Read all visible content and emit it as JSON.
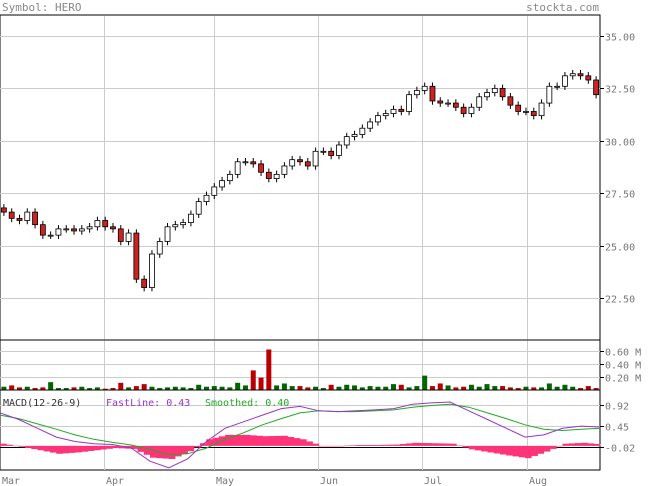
{
  "header": {
    "symbol_text": "Symbol: HERO",
    "brand": "stockta.com"
  },
  "macd": {
    "title": "MACD(12-26-9)",
    "fast_label": "FastLine: 0.43",
    "smooth_label": "Smoothed: 0.40"
  },
  "colors": {
    "background": "#ffffff",
    "grid": "#cccccc",
    "frame": "#000000",
    "up_candle": "#ffffff",
    "down_candle": "#cc2222",
    "volume_up": "#006600",
    "volume_down": "#bb0000",
    "fast_line": "#9933cc",
    "smoothed_line": "#22aa22",
    "histogram": "#ff3377"
  },
  "chart_data": [
    {
      "type": "candlestick",
      "title": "Symbol: HERO",
      "x_labels": [
        "Mar",
        "Apr",
        "May",
        "Jun",
        "Jul",
        "Aug"
      ],
      "y_ticks": [
        35.0,
        32.5,
        30.0,
        27.5,
        25.0,
        22.5
      ],
      "y_tick_labels": [
        "35.00",
        "32.50",
        "30.00",
        "27.50",
        "25.00",
        "22.50"
      ],
      "ylim": [
        20.5,
        36.0
      ],
      "grid": true,
      "close": [
        26.6,
        26.3,
        26.2,
        26.6,
        26.0,
        25.5,
        25.5,
        25.8,
        25.8,
        25.7,
        25.8,
        25.9,
        26.2,
        25.9,
        25.8,
        25.2,
        25.6,
        23.4,
        23.0,
        24.6,
        25.2,
        25.9,
        26.0,
        26.1,
        26.5,
        27.1,
        27.4,
        27.8,
        28.1,
        28.4,
        29.0,
        29.0,
        28.9,
        28.5,
        28.2,
        28.4,
        28.8,
        29.1,
        29.0,
        28.8,
        29.5,
        29.5,
        29.3,
        29.8,
        30.2,
        30.3,
        30.6,
        30.9,
        31.2,
        31.3,
        31.5,
        31.4,
        32.2,
        32.4,
        32.6,
        31.9,
        31.8,
        31.8,
        31.6,
        31.3,
        31.6,
        32.1,
        32.3,
        32.5,
        32.1,
        31.7,
        31.4,
        31.4,
        31.2,
        31.8,
        32.6,
        32.6,
        33.1,
        33.2,
        33.1,
        32.9,
        32.2
      ],
      "volume_ticks": [
        "0.60 M",
        "0.40 M",
        "0.20 M"
      ],
      "volume_max": 0.75,
      "volume": [
        0.05,
        0.07,
        0.04,
        0.05,
        0.03,
        0.04,
        0.12,
        0.03,
        0.03,
        0.04,
        0.05,
        0.03,
        0.04,
        0.02,
        0.03,
        0.11,
        0.04,
        0.06,
        0.09,
        0.05,
        0.03,
        0.04,
        0.05,
        0.04,
        0.03,
        0.08,
        0.05,
        0.06,
        0.05,
        0.04,
        0.11,
        0.07,
        0.3,
        0.19,
        0.62,
        0.07,
        0.1,
        0.06,
        0.06,
        0.04,
        0.05,
        0.03,
        0.08,
        0.05,
        0.08,
        0.07,
        0.04,
        0.06,
        0.05,
        0.05,
        0.09,
        0.08,
        0.04,
        0.06,
        0.22,
        0.06,
        0.1,
        0.07,
        0.04,
        0.05,
        0.08,
        0.05,
        0.09,
        0.06,
        0.06,
        0.04,
        0.03,
        0.05,
        0.04,
        0.04,
        0.1,
        0.05,
        0.08,
        0.05,
        0.03,
        0.06,
        0.03
      ]
    },
    {
      "type": "line",
      "title": "MACD(12-26-9)",
      "y_ticks": [
        0.92,
        0.45,
        -0.02
      ],
      "y_tick_labels": [
        "0.92",
        "0.45",
        "-0.02"
      ],
      "ylim": [
        -0.55,
        1.25
      ],
      "series": [
        {
          "name": "FastLine: 0.43",
          "values": [
            0.75,
            0.6,
            0.4,
            0.2,
            0.1,
            0.05,
            0.03,
            -0.05,
            -0.35,
            -0.5,
            -0.3,
            0.1,
            0.4,
            0.55,
            0.7,
            0.85,
            0.9,
            0.8,
            0.78,
            0.8,
            0.82,
            0.85,
            0.95,
            0.98,
            1.0,
            0.8,
            0.6,
            0.4,
            0.2,
            0.25,
            0.4,
            0.45,
            0.43
          ]
        },
        {
          "name": "Smoothed: 0.40",
          "values": [
            0.7,
            0.62,
            0.5,
            0.38,
            0.25,
            0.15,
            0.08,
            0.02,
            -0.08,
            -0.2,
            -0.18,
            -0.05,
            0.15,
            0.3,
            0.48,
            0.62,
            0.75,
            0.8,
            0.78,
            0.78,
            0.8,
            0.82,
            0.88,
            0.92,
            0.95,
            0.88,
            0.75,
            0.62,
            0.48,
            0.38,
            0.35,
            0.38,
            0.4
          ]
        },
        {
          "name": "Histogram",
          "values": [
            0.05,
            -0.02,
            -0.1,
            -0.18,
            -0.15,
            -0.1,
            -0.05,
            -0.07,
            -0.27,
            -0.3,
            -0.12,
            0.15,
            0.25,
            0.25,
            0.22,
            0.23,
            0.15,
            0.0,
            0.0,
            0.02,
            0.02,
            0.03,
            0.07,
            0.06,
            0.05,
            -0.08,
            -0.15,
            -0.22,
            -0.28,
            -0.13,
            0.05,
            0.07,
            0.03
          ]
        }
      ]
    }
  ]
}
